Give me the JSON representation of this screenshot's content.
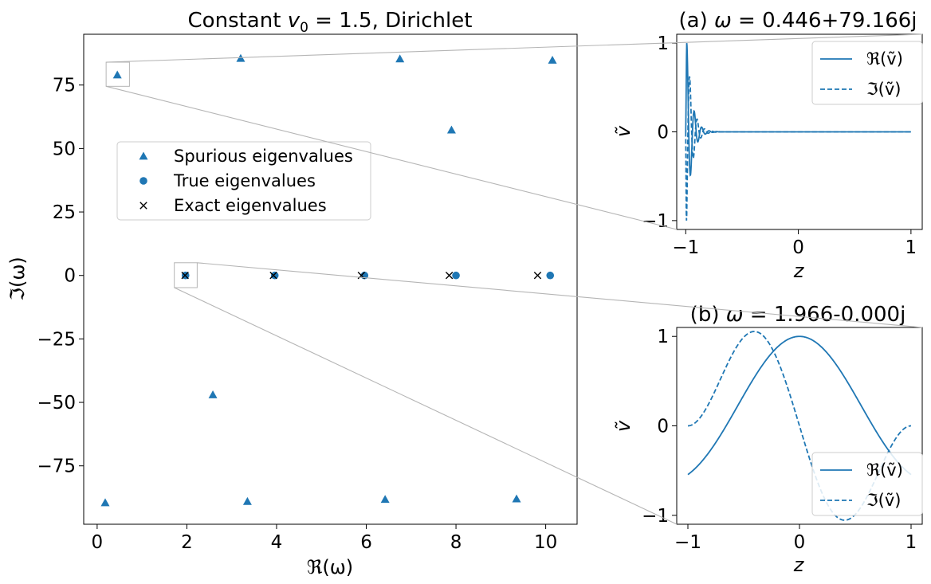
{
  "chart_data": [
    {
      "id": "main",
      "type": "scatter",
      "title": "Constant v0 = 1.5, Dirichlet",
      "xlabel": "ℜ(ω)",
      "ylabel": "ℑ(ω)",
      "xlim": [
        -0.3,
        10.7
      ],
      "ylim": [
        -98,
        95
      ],
      "xticks": [
        0,
        2,
        4,
        6,
        8,
        10
      ],
      "yticks": [
        75,
        50,
        25,
        0,
        -25,
        -50,
        -75
      ],
      "xtick_labels": [
        "0",
        "2",
        "4",
        "6",
        "8",
        "10"
      ],
      "ytick_labels": [
        "75",
        "50",
        "25",
        "0",
        "−25",
        "−50",
        "−75"
      ],
      "legend_position": "upper-left",
      "series": [
        {
          "name": "Spurious eigenvalues",
          "marker": "triangle",
          "color": "#1f77b4",
          "points": [
            [
              0.45,
              79
            ],
            [
              3.2,
              85.5
            ],
            [
              6.75,
              85.3
            ],
            [
              10.15,
              84.8
            ],
            [
              7.9,
              57.3
            ],
            [
              2.58,
              -47
            ],
            [
              0.18,
              -89.5
            ],
            [
              3.35,
              -89
            ],
            [
              6.42,
              -88.2
            ],
            [
              9.35,
              -88
            ]
          ]
        },
        {
          "name": "True eigenvalues",
          "marker": "circle",
          "color": "#1f77b4",
          "points": [
            [
              1.97,
              0
            ],
            [
              3.96,
              0
            ],
            [
              5.96,
              0
            ],
            [
              8.0,
              0
            ],
            [
              10.1,
              0
            ]
          ]
        },
        {
          "name": "Exact eigenvalues",
          "marker": "x",
          "color": "#000000",
          "points": [
            [
              1.96,
              0
            ],
            [
              3.93,
              0
            ],
            [
              5.89,
              0
            ],
            [
              7.85,
              0
            ],
            [
              9.82,
              0
            ]
          ]
        }
      ],
      "zoom_boxes": [
        {
          "xrange": [
            0.2,
            0.72
          ],
          "yrange": [
            74.5,
            84
          ]
        },
        {
          "xrange": [
            1.72,
            2.23
          ],
          "yrange": [
            -4.8,
            5
          ]
        }
      ]
    },
    {
      "id": "inset_a",
      "type": "line",
      "title": "(a) ω = 0.446+79.166j",
      "xlabel": "z",
      "ylabel": "ṽ",
      "xlim": [
        -1.08,
        1.1
      ],
      "ylim": [
        -1.1,
        1.1
      ],
      "xticks": [
        -1,
        0,
        1
      ],
      "yticks": [
        1,
        0,
        -1
      ],
      "xtick_labels": [
        "−1",
        "0",
        "1"
      ],
      "ytick_labels": [
        "1",
        "0",
        "−1"
      ],
      "legend_position": "top-right",
      "series": [
        {
          "name": "ℜ(ṽ)",
          "style": "solid",
          "color": "#1f77b4"
        },
        {
          "name": "ℑ(ṽ)",
          "style": "dashed",
          "color": "#1f77b4"
        }
      ]
    },
    {
      "id": "inset_b",
      "type": "line",
      "title": "(b) ω = 1.966-0.000j",
      "xlabel": "z",
      "ylabel": "ṽ",
      "xlim": [
        -1.1,
        1.1
      ],
      "ylim": [
        -1.1,
        1.1
      ],
      "xticks": [
        -1,
        0,
        1
      ],
      "yticks": [
        1,
        0,
        -1
      ],
      "xtick_labels": [
        "−1",
        "0",
        "1"
      ],
      "ytick_labels": [
        "1",
        "0",
        "−1"
      ],
      "legend_position": "bottom-right",
      "series": [
        {
          "name": "ℜ(ṽ)",
          "style": "solid",
          "color": "#1f77b4"
        },
        {
          "name": "ℑ(ṽ)",
          "style": "dashed",
          "color": "#1f77b4"
        }
      ]
    }
  ]
}
